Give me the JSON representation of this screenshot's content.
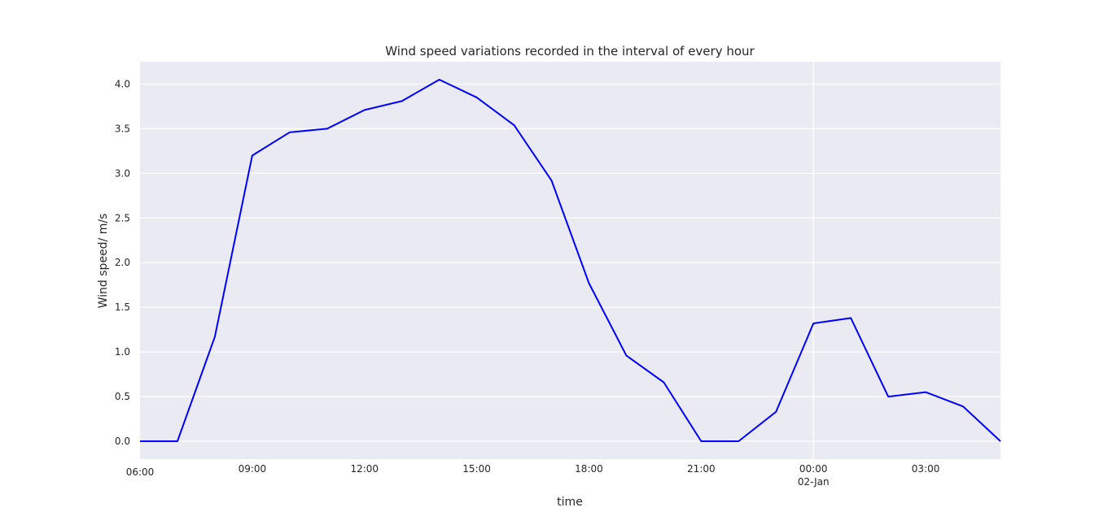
{
  "chart_data": {
    "type": "line",
    "title": "Wind speed variations recorded in the interval of every hour",
    "xlabel": "time",
    "ylabel": "Wind speed/ m/s",
    "x_tick_labels": [
      {
        "hours": 0,
        "label": "06:00",
        "sublabel": ""
      },
      {
        "hours": 3,
        "label": "09:00",
        "sublabel": ""
      },
      {
        "hours": 6,
        "label": "12:00",
        "sublabel": ""
      },
      {
        "hours": 9,
        "label": "15:00",
        "sublabel": ""
      },
      {
        "hours": 12,
        "label": "18:00",
        "sublabel": ""
      },
      {
        "hours": 15,
        "label": "21:00",
        "sublabel": ""
      },
      {
        "hours": 18,
        "label": "00:00",
        "sublabel": "02-Jan"
      },
      {
        "hours": 21,
        "label": "03:00",
        "sublabel": ""
      }
    ],
    "y_ticks": [
      "0.0",
      "0.5",
      "1.0",
      "1.5",
      "2.0",
      "2.5",
      "3.0",
      "3.5",
      "4.0"
    ],
    "ylim": [
      -0.2,
      4.25
    ],
    "grid": true,
    "series": [
      {
        "color": "#0000ff",
        "x_hours": [
          0,
          1,
          2,
          3,
          4,
          5,
          6,
          7,
          8,
          9,
          10,
          11,
          12,
          13,
          14,
          15,
          16,
          17,
          18,
          19,
          20,
          21,
          22,
          23
        ],
        "values": [
          0.0,
          0.0,
          1.17,
          3.2,
          3.46,
          3.5,
          3.71,
          3.81,
          4.05,
          3.85,
          3.54,
          2.92,
          1.77,
          0.96,
          0.66,
          0.0,
          0.0,
          0.33,
          1.32,
          1.38,
          0.5,
          0.55,
          0.39,
          0.0
        ]
      }
    ]
  }
}
